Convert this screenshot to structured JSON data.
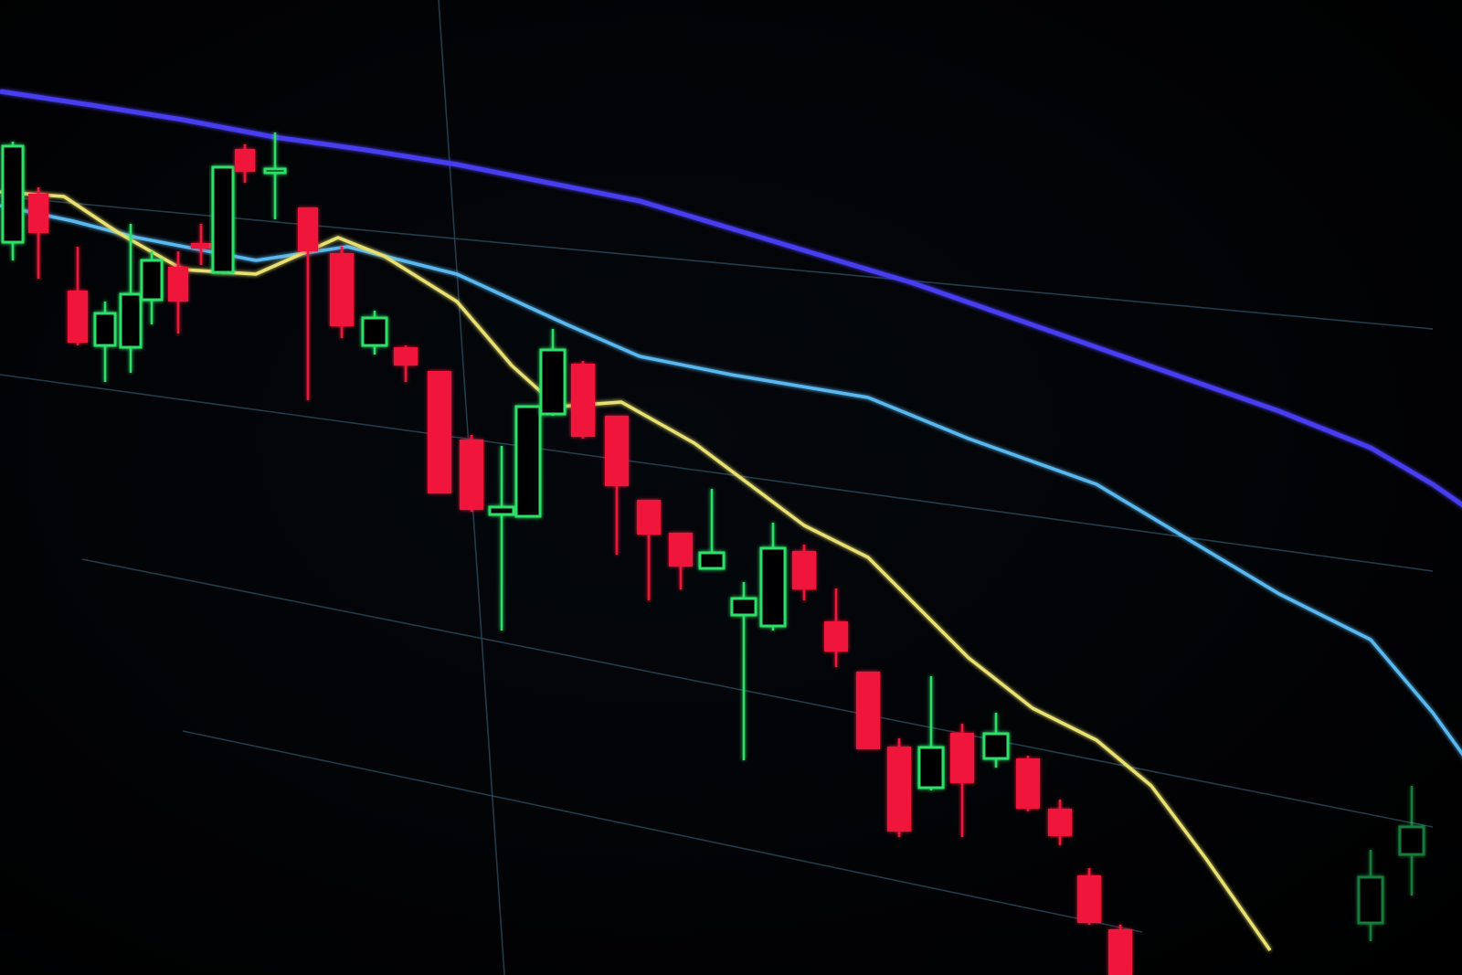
{
  "chart_data": {
    "type": "candlestick",
    "title": "",
    "xlabel": "",
    "ylabel": "",
    "ylim": [
      0,
      106.7
    ],
    "grid": true,
    "legend": "none",
    "colors": {
      "up": "#2ee06a",
      "down": "#f0193a",
      "ma_slow": "#4a3cf0",
      "ma_mid": "#5ab8f0",
      "ma_fast": "#e8e070",
      "grid": "#2a4a5a"
    },
    "candles": [
      {
        "o": 80.2,
        "c": 90.7,
        "h": 91.2,
        "l": 78.2
      },
      {
        "o": 85.5,
        "c": 81.2,
        "h": 86.2,
        "l": 76.2
      },
      {
        "o": 74.9,
        "c": 69.2,
        "h": 79.7,
        "l": 68.9
      },
      {
        "o": 68.9,
        "c": 72.4,
        "h": 73.7,
        "l": 64.9
      },
      {
        "o": 68.7,
        "c": 74.5,
        "h": 82.2,
        "l": 65.9
      },
      {
        "o": 73.9,
        "c": 78.2,
        "h": 79.2,
        "l": 71.2
      },
      {
        "o": 77.5,
        "c": 73.7,
        "h": 79.2,
        "l": 70.2
      },
      {
        "o": 80.1,
        "c": 79.5,
        "h": 82.2,
        "l": 77.7
      },
      {
        "o": 76.9,
        "c": 88.4,
        "h": 88.4,
        "l": 76.7
      },
      {
        "o": 90.4,
        "c": 87.9,
        "h": 90.9,
        "l": 86.7
      },
      {
        "o": 87.9,
        "c": 88.2,
        "h": 92.2,
        "l": 82.7
      },
      {
        "o": 84.0,
        "c": 79.2,
        "h": 84.0,
        "l": 62.9
      },
      {
        "o": 79.0,
        "c": 71.0,
        "h": 79.7,
        "l": 69.7
      },
      {
        "o": 68.9,
        "c": 71.9,
        "h": 72.7,
        "l": 67.9
      },
      {
        "o": 68.7,
        "c": 66.7,
        "h": 68.9,
        "l": 64.9
      },
      {
        "o": 66.1,
        "c": 52.7,
        "h": 66.1,
        "l": 52.7
      },
      {
        "o": 58.6,
        "c": 50.9,
        "h": 59.1,
        "l": 50.7
      },
      {
        "o": 50.4,
        "c": 51.2,
        "h": 57.9,
        "l": 37.7
      },
      {
        "o": 50.2,
        "c": 62.2,
        "h": 62.2,
        "l": 50.2
      },
      {
        "o": 61.4,
        "c": 68.4,
        "h": 70.7,
        "l": 61.2
      },
      {
        "o": 66.9,
        "c": 58.9,
        "h": 67.2,
        "l": 58.7
      },
      {
        "o": 61.2,
        "c": 53.5,
        "h": 61.2,
        "l": 46.0
      },
      {
        "o": 52.0,
        "c": 48.2,
        "h": 52.0,
        "l": 41.0
      },
      {
        "o": 48.4,
        "c": 44.7,
        "h": 48.4,
        "l": 42.2
      },
      {
        "o": 44.5,
        "c": 46.2,
        "h": 53.2,
        "l": 44.5
      },
      {
        "o": 39.4,
        "c": 41.2,
        "h": 43.0,
        "l": 23.5
      },
      {
        "o": 38.2,
        "c": 46.7,
        "h": 49.5,
        "l": 37.7
      },
      {
        "o": 46.4,
        "c": 42.2,
        "h": 47.1,
        "l": 41.0
      },
      {
        "o": 38.7,
        "c": 35.4,
        "h": 42.3,
        "l": 33.7
      },
      {
        "o": 33.2,
        "c": 24.7,
        "h": 33.2,
        "l": 24.7
      },
      {
        "o": 25.0,
        "c": 15.7,
        "h": 25.9,
        "l": 15.1
      },
      {
        "o": 20.5,
        "c": 24.9,
        "h": 32.7,
        "l": 20.2
      },
      {
        "o": 26.5,
        "c": 21.0,
        "h": 27.5,
        "l": 15.1
      },
      {
        "o": 23.7,
        "c": 26.4,
        "h": 28.7,
        "l": 22.7
      },
      {
        "o": 23.7,
        "c": 18.2,
        "h": 24.0,
        "l": 17.9
      },
      {
        "o": 18.2,
        "c": 15.2,
        "h": 19.2,
        "l": 14.2
      },
      {
        "o": 10.9,
        "c": 5.7,
        "h": 11.7,
        "l": 5.5
      },
      {
        "o": 5.0,
        "c": 0.0,
        "h": 5.5,
        "l": 0.0
      },
      {
        "o": 5.7,
        "c": 10.7,
        "h": 13.7,
        "l": 3.7
      },
      {
        "o": 13.2,
        "c": 16.2,
        "h": 20.7,
        "l": 8.7
      }
    ],
    "moving_averages": [
      {
        "color_key": "ma_slow",
        "values": [
          96.7,
          95.2,
          93.6,
          91.7,
          90.3,
          88.7,
          86.7,
          84.7,
          81.7,
          78.7,
          75.7,
          72.2,
          68.7,
          65.2,
          61.7,
          57.7,
          53.7,
          48.7
        ]
      },
      {
        "color_key": "ma_mid",
        "values": [
          84.2,
          82.5,
          80.7,
          78.2,
          79.7,
          76.7,
          71.2,
          67.7,
          65.7,
          63.2,
          58.7,
          53.7,
          47.7,
          41.7,
          36.7,
          28.7,
          18.7,
          6.7,
          5.7
        ]
      },
      {
        "color_key": "ma_fast",
        "values": [
          85.7,
          85.2,
          81.2,
          77.2,
          76.7,
          80.7,
          78.7,
          73.7,
          66.7,
          62.2,
          62.7,
          58.2,
          49.2,
          45.7,
          34.7,
          29.2,
          25.7,
          20.7,
          12.7,
          2.7
        ]
      }
    ]
  }
}
